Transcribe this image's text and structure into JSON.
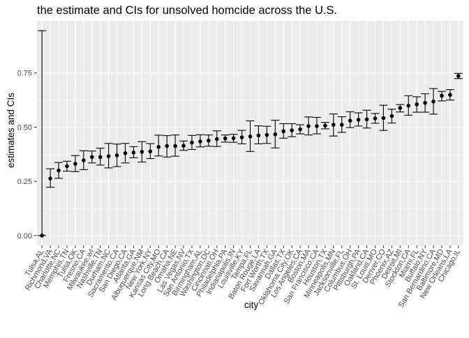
{
  "chart_data": {
    "type": "scatter",
    "title": "the estimate and CIs for unsolved homcide across the U.S.",
    "xlabel": "city",
    "ylabel": "estimates and CIs",
    "ylim": [
      0,
      0.75
    ],
    "y_ticks": [
      0.0,
      0.25,
      0.5,
      0.75
    ],
    "y_tick_labels": [
      "0.00",
      "0.25",
      "0.50",
      "0.75"
    ],
    "grid": true,
    "legend": "none",
    "colors": {
      "panel": "#ebebeb",
      "grid": "#ffffff",
      "point": "#000000",
      "text": "#4d4d4d",
      "title": "#000000"
    },
    "categories": [
      "Tulsa,AL",
      "Richmond,VA",
      "Charlotte,NC",
      "Memphis,TN",
      "Tulsa,OK",
      "Fresno,CA",
      "Milwaukee,wI",
      "Nashville,TN",
      "Durham,NC",
      "Sacramento,CA",
      "San Diego,CA",
      "Atlanta,GA",
      "Albuquerque,NM",
      "New York,NY",
      "Kansas City,MO",
      "Long Beach,CA",
      "Omaha,NE",
      "Las Vegas,NV",
      "San Antonio,TX",
      "Birmingham,AL",
      "Washington,DC",
      "Cincinnati,OH",
      "Philadelphia,PA",
      "Indianapolis,IN",
      "Louisville,KY",
      "Tampa,FL",
      "Baton Rouge,LA",
      "Fort Worth,TX",
      "Savannah,GA",
      "Dallas,TX",
      "Oklahoma City,OK",
      "Los Angeles,CA",
      "Boston,MA",
      "San Francisco,CA",
      "Houston,TX",
      "Minneapolis,MN",
      "Jacksonville,FL",
      "Columbus,OH",
      "Pittsburgh,PA",
      "Oakland,CA",
      "St. Louis,MO",
      "Denver,CO",
      "Phoenix,AZ",
      "Detroit,MI",
      "Stockton,CA",
      "Miami,FL",
      "Buffalo,NY",
      "San Bernardino,CA",
      "Baltimore,MD",
      "New Orleans,LA",
      "Chicago,IL"
    ],
    "series": [
      {
        "estimate": [
          0.0,
          0.263,
          0.3,
          0.32,
          0.331,
          0.347,
          0.362,
          0.362,
          0.366,
          0.37,
          0.38,
          0.383,
          0.386,
          0.388,
          0.409,
          0.413,
          0.413,
          0.414,
          0.429,
          0.434,
          0.438,
          0.445,
          0.448,
          0.449,
          0.453,
          0.457,
          0.462,
          0.464,
          0.467,
          0.481,
          0.485,
          0.49,
          0.505,
          0.505,
          0.507,
          0.511,
          0.511,
          0.53,
          0.534,
          0.536,
          0.54,
          0.542,
          0.551,
          0.588,
          0.599,
          0.605,
          0.612,
          0.618,
          0.645,
          0.649,
          0.736
        ],
        "lower": [
          0.0,
          0.223,
          0.264,
          0.297,
          0.295,
          0.304,
          0.335,
          0.325,
          0.312,
          0.318,
          0.335,
          0.359,
          0.339,
          0.355,
          0.367,
          0.362,
          0.366,
          0.393,
          0.397,
          0.409,
          0.412,
          0.411,
          0.431,
          0.43,
          0.423,
          0.388,
          0.423,
          0.425,
          0.404,
          0.449,
          0.456,
          0.469,
          0.464,
          0.469,
          0.492,
          0.459,
          0.476,
          0.498,
          0.505,
          0.496,
          0.518,
          0.485,
          0.519,
          0.57,
          0.555,
          0.569,
          0.569,
          0.56,
          0.621,
          0.625,
          0.724
        ],
        "upper": [
          0.945,
          0.308,
          0.337,
          0.343,
          0.369,
          0.391,
          0.39,
          0.403,
          0.425,
          0.422,
          0.425,
          0.41,
          0.433,
          0.424,
          0.463,
          0.461,
          0.464,
          0.436,
          0.462,
          0.465,
          0.464,
          0.483,
          0.464,
          0.467,
          0.485,
          0.529,
          0.506,
          0.504,
          0.532,
          0.516,
          0.516,
          0.511,
          0.547,
          0.545,
          0.522,
          0.561,
          0.548,
          0.571,
          0.566,
          0.578,
          0.563,
          0.601,
          0.583,
          0.604,
          0.645,
          0.64,
          0.654,
          0.678,
          0.665,
          0.673,
          0.748
        ]
      }
    ]
  }
}
